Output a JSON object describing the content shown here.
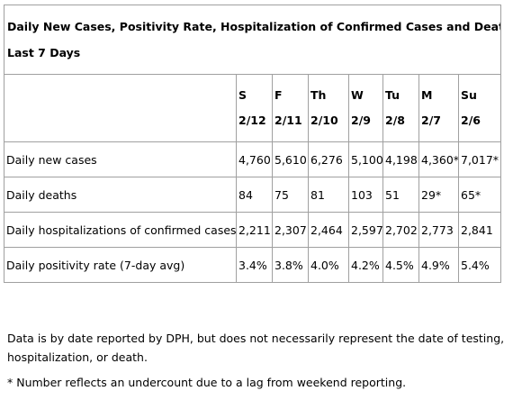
{
  "table": {
    "title_line1": "Daily New Cases, Positivity Rate, Hospitalization of Confirmed Cases and Deaths",
    "title_line2": "Last 7 Days",
    "days": [
      {
        "day": "S",
        "date": "2/12"
      },
      {
        "day": "F",
        "date": "2/11"
      },
      {
        "day": "Th",
        "date": "2/10"
      },
      {
        "day": "W",
        "date": "2/9"
      },
      {
        "day": "Tu",
        "date": "2/8"
      },
      {
        "day": "M",
        "date": "2/7"
      },
      {
        "day": "Su",
        "date": "2/6"
      }
    ],
    "rows": [
      {
        "label": "Daily new cases",
        "values": [
          "4,760",
          "5,610",
          "6,276",
          "5,100",
          "4,198",
          "4,360*",
          "7,017*"
        ]
      },
      {
        "label": "Daily deaths",
        "values": [
          "84",
          "75",
          "81",
          "103",
          "51",
          "29*",
          "65*"
        ]
      },
      {
        "label": "Daily hospitalizations of confirmed cases",
        "values": [
          "2,211",
          "2,307",
          "2,464",
          "2,597",
          "2,702",
          "2,773",
          "2,841"
        ]
      },
      {
        "label": "Daily positivity rate (7-day avg)",
        "values": [
          "3.4%",
          "3.8%",
          "4.0%",
          "4.2%",
          "4.5%",
          "4.9%",
          "5.4%"
        ]
      }
    ]
  },
  "notes": {
    "source": "Data is by date reported by DPH, but does not necessarily represent the date of testing, hospitalization, or death.",
    "footnote": "* Number reflects an undercount due to a lag from weekend reporting."
  }
}
